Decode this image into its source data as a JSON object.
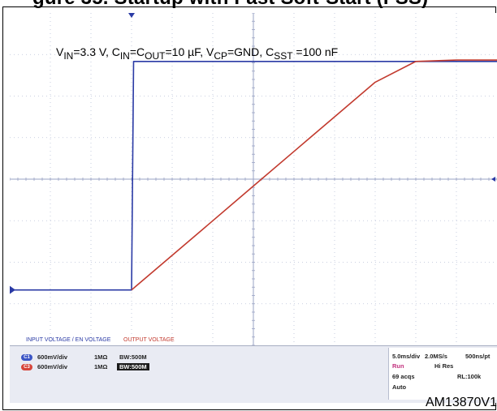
{
  "header": {
    "partial_title": "gure 35. Startup with Fast Soft-Start (FSS)",
    "conditions": {
      "v_in": "3.3 V",
      "c_in_c_out": "10 µF",
      "v_cp": "GND",
      "c_sst": "100 nF"
    }
  },
  "chart_data": {
    "type": "line",
    "title": "",
    "xlabel": "",
    "ylabel": "",
    "x_divisions": 12,
    "y_divisions": 8,
    "time_per_div": "5.0ms/div",
    "volts_per_div": "600mV/div",
    "xlim": [
      0,
      60
    ],
    "ylim": [
      -0.8,
      4.0
    ],
    "series": [
      {
        "name": "INPUT VOLTAGE / EN VOLTAGE",
        "color": "#2a3aa5",
        "x": [
          0,
          15.0,
          15.25,
          60
        ],
        "y": [
          0.0,
          0.0,
          3.3,
          3.3
        ]
      },
      {
        "name": "OUTPUT VOLTAGE",
        "color": "#c23a2e",
        "x": [
          15.0,
          15.5,
          20,
          25,
          30,
          35,
          40,
          45,
          50,
          55,
          60
        ],
        "y": [
          0.0,
          0.05,
          0.5,
          1.0,
          1.5,
          2.0,
          2.5,
          3.0,
          3.3,
          3.32,
          3.32
        ]
      }
    ]
  },
  "scope_panel": {
    "channels": [
      {
        "id": "C1",
        "color": "#3b55c5",
        "scale": "600mV/div",
        "impedance": "1MΩ",
        "bandwidth": "BW:500M"
      },
      {
        "id": "C3",
        "color": "#d6453a",
        "scale": "600mV/div",
        "impedance": "1MΩ",
        "bandwidth": "BW:500M"
      }
    ],
    "acquisition": {
      "timebase": "5.0ms/div",
      "sample_rate": "2.0MS/s",
      "pt_rate": "500ns/pt",
      "state": "Run",
      "mode": "Hi Res",
      "acqs": "69 acqs",
      "record_length": "RL:100k",
      "trigger": "Auto"
    }
  },
  "figure_id": "AM13870V1"
}
